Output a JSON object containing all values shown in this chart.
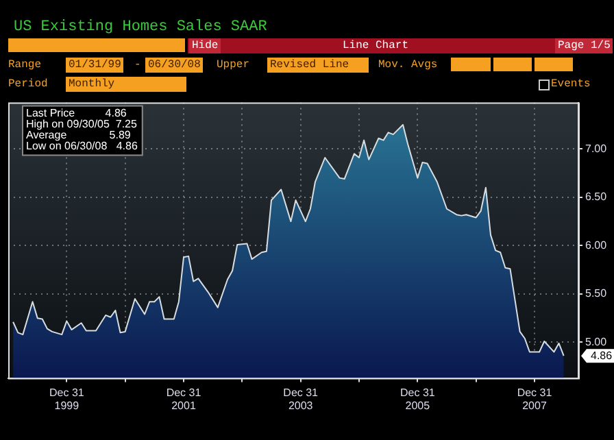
{
  "chart_data": {
    "type": "area",
    "title": "US Existing Homes Sales SAAR",
    "annotations": [
      "Hide",
      "Line Chart",
      "Page 1/5",
      "Range",
      "01/31/99",
      "-",
      "06/30/08",
      "Upper",
      "Revised Line",
      "Mov. Avgs",
      "Period",
      "Monthly",
      "Events",
      "Last Price          4.86",
      "High on 09/30/05  7.25",
      "Average              5.89",
      "Low on 06/30/08   4.86",
      {
        "text": "4.86",
        "x": "2008-06",
        "y": 4.86
      }
    ],
    "x": [
      "1999-01",
      "1999-02",
      "1999-03",
      "1999-05",
      "1999-06",
      "1999-07",
      "1999-08",
      "1999-09",
      "1999-11",
      "1999-12",
      "2000-01",
      "2000-03",
      "2000-04",
      "2000-06",
      "2000-08",
      "2000-09",
      "2000-10",
      "2000-11",
      "2000-12",
      "2001-02",
      "2001-04",
      "2001-05",
      "2001-06",
      "2001-07",
      "2001-08",
      "2001-10",
      "2001-11",
      "2001-12",
      "2002-01",
      "2002-02",
      "2002-03",
      "2002-05",
      "2002-07",
      "2002-09",
      "2002-10",
      "2002-11",
      "2003-01",
      "2003-02",
      "2003-04",
      "2003-05",
      "2003-06",
      "2003-08",
      "2003-10",
      "2003-11",
      "2004-01",
      "2004-02",
      "2004-03",
      "2004-05",
      "2004-08",
      "2004-09",
      "2004-11",
      "2004-12",
      "2005-01",
      "2005-02",
      "2005-04",
      "2005-05",
      "2005-06",
      "2005-07",
      "2005-09",
      "2005-10",
      "2005-12",
      "2006-01",
      "2006-02",
      "2006-04",
      "2006-06",
      "2006-08",
      "2006-09",
      "2006-10",
      "2006-12",
      "2007-01",
      "2007-02",
      "2007-03",
      "2007-04",
      "2007-05",
      "2007-06",
      "2007-07",
      "2007-09",
      "2007-10",
      "2007-11",
      "2008-01",
      "2008-02",
      "2008-04",
      "2008-05",
      "2008-06"
    ],
    "series": [
      {
        "color": "#2b7a98",
        "values": [
          5.21,
          5.1,
          5.08,
          5.42,
          5.25,
          5.24,
          5.14,
          5.11,
          5.08,
          5.22,
          5.13,
          5.2,
          5.12,
          5.12,
          5.28,
          5.26,
          5.33,
          5.1,
          5.11,
          5.45,
          5.29,
          5.42,
          5.42,
          5.47,
          5.24,
          5.24,
          5.42,
          5.88,
          5.89,
          5.63,
          5.66,
          5.52,
          5.36,
          5.65,
          5.74,
          6.01,
          6.02,
          5.86,
          5.93,
          5.94,
          6.47,
          6.58,
          6.25,
          6.47,
          6.25,
          6.38,
          6.66,
          6.91,
          6.7,
          6.69,
          6.95,
          6.91,
          7.09,
          6.89,
          7.11,
          7.09,
          7.17,
          7.15,
          7.25,
          7.05,
          6.7,
          6.86,
          6.85,
          6.66,
          6.38,
          6.32,
          6.31,
          6.32,
          6.29,
          6.36,
          6.6,
          6.11,
          5.95,
          5.93,
          5.77,
          5.76,
          5.11,
          5.04,
          4.9,
          4.9,
          5.01,
          4.9,
          4.99,
          4.86
        ]
      }
    ],
    "xlim": [
      "1998-12",
      "2008-09"
    ],
    "xticks": [
      {
        "value": "1999-12",
        "label": "Dec 31 1999"
      },
      {
        "value": "2000-12",
        "label": null
      },
      {
        "value": "2001-12",
        "label": "Dec 31 2001"
      },
      {
        "value": "2002-12",
        "label": null
      },
      {
        "value": "2003-12",
        "label": "Dec 31 2003"
      },
      {
        "value": "2004-12",
        "label": null
      },
      {
        "value": "2005-12",
        "label": "Dec 31 2005"
      },
      {
        "value": "2006-12",
        "label": null
      },
      {
        "value": "2007-12",
        "label": "Dec 31 2007"
      }
    ],
    "ylim": [
      4.63,
      7.48
    ],
    "yticks": [
      {
        "value": 5,
        "label": "5.00"
      },
      {
        "value": 5.5,
        "label": "5.50"
      },
      {
        "value": 6,
        "label": "6.00"
      },
      {
        "value": 6.5,
        "label": "6.50"
      },
      {
        "value": 7,
        "label": "7.00"
      }
    ],
    "grid": true,
    "legend": false
  }
}
